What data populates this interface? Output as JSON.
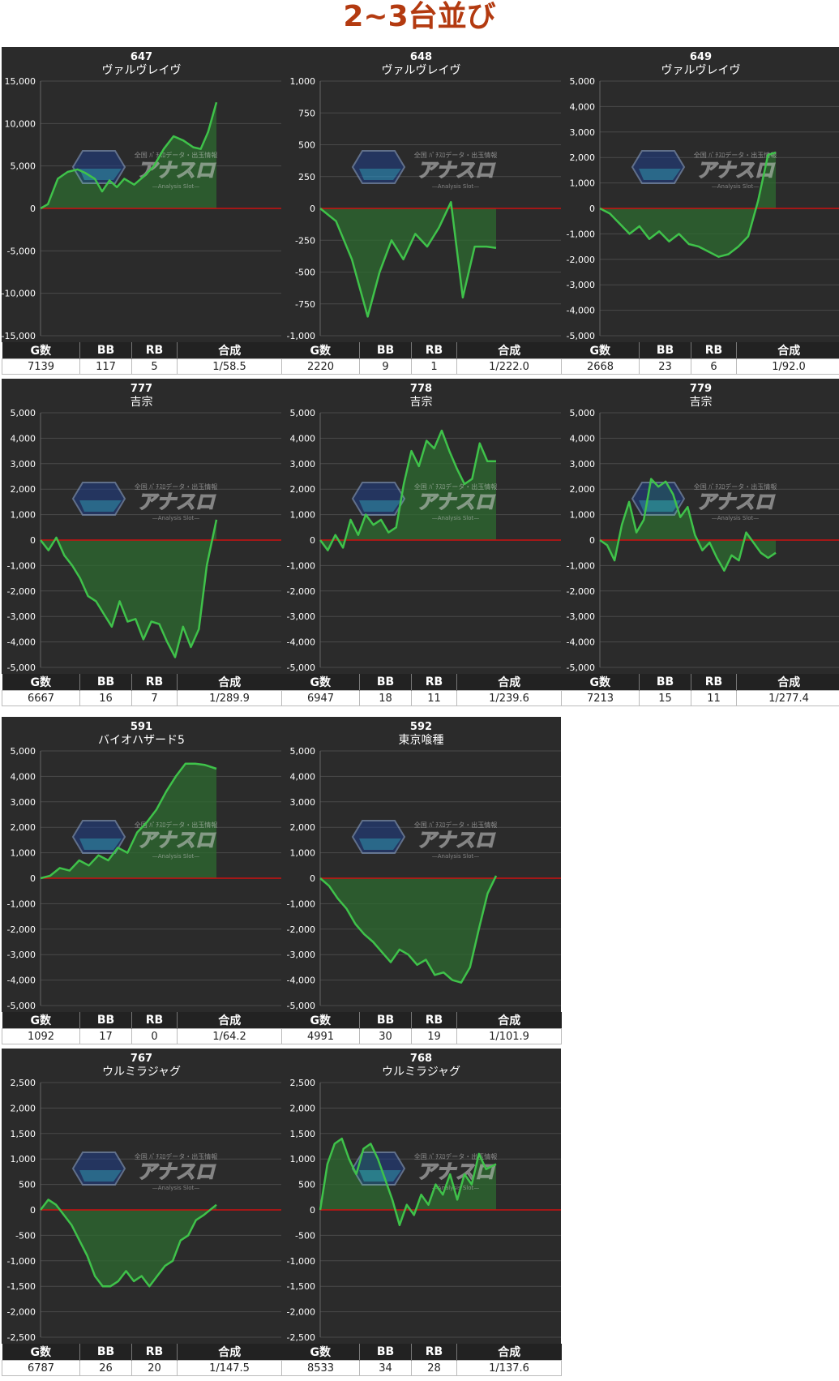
{
  "page": {
    "title": "2~3台並び"
  },
  "watermark": {
    "text": "アナスロ",
    "sub": "—Analysis Slot—",
    "top": "全国 ﾊﾟﾁｽﾛデータ・出玉情報"
  },
  "colors": {
    "line": "#3fc24a",
    "fill": "#2e6b30",
    "zero": "#cc1111",
    "plot_bg": "#2b2b2b",
    "title": "#b33a10"
  },
  "table_headers": [
    "G数",
    "BB",
    "RB",
    "合成"
  ],
  "machines": [
    {
      "number": "647",
      "name": "ヴァルヴレイヴ",
      "stats": {
        "games": "7139",
        "bb": "117",
        "rb": "5",
        "combined": "1/58.5"
      },
      "chart_data": {
        "type": "line",
        "ylim": [
          -15000,
          15000
        ],
        "yticks": [
          15000,
          10000,
          5000,
          0,
          -5000,
          -10000,
          -15000
        ],
        "tick_labels": [
          "15,000",
          "10,000",
          "5,000",
          "0",
          "-5,000",
          "-10,000",
          "-15,000"
        ],
        "xmax": 7139,
        "x": [
          0,
          300,
          700,
          1100,
          1500,
          1800,
          2200,
          2500,
          2800,
          3100,
          3400,
          3800,
          4200,
          4600,
          5000,
          5400,
          5800,
          6200,
          6500,
          6800,
          7139
        ],
        "y": [
          0,
          500,
          3500,
          4300,
          4600,
          4200,
          3500,
          2000,
          3300,
          2500,
          3500,
          2800,
          3800,
          5000,
          7000,
          8500,
          8000,
          7200,
          7000,
          9000,
          12500
        ]
      }
    },
    {
      "number": "648",
      "name": "ヴァルヴレイヴ",
      "stats": {
        "games": "2220",
        "bb": "9",
        "rb": "1",
        "combined": "1/222.0"
      },
      "chart_data": {
        "type": "line",
        "ylim": [
          -1000,
          1000
        ],
        "yticks": [
          1000,
          750,
          500,
          250,
          0,
          -250,
          -500,
          -750,
          -1000
        ],
        "tick_labels": [
          "1,000",
          "750",
          "500",
          "250",
          "0",
          "-250",
          "-500",
          "-750",
          "-1,000"
        ],
        "xmax": 2220,
        "x": [
          0,
          200,
          400,
          600,
          750,
          900,
          1050,
          1200,
          1350,
          1500,
          1650,
          1800,
          1950,
          2100,
          2220
        ],
        "y": [
          0,
          -100,
          -400,
          -850,
          -500,
          -250,
          -400,
          -200,
          -300,
          -150,
          50,
          -700,
          -300,
          -300,
          -310
        ]
      }
    },
    {
      "number": "649",
      "name": "ヴァルヴレイヴ",
      "stats": {
        "games": "2668",
        "bb": "23",
        "rb": "6",
        "combined": "1/92.0"
      },
      "chart_data": {
        "type": "line",
        "ylim": [
          -5000,
          5000
        ],
        "yticks": [
          5000,
          4000,
          3000,
          2000,
          1000,
          0,
          -1000,
          -2000,
          -3000,
          -4000,
          -5000
        ],
        "tick_labels": [
          "5,000",
          "4,000",
          "3,000",
          "2,000",
          "1,000",
          "0",
          "-1,000",
          "-2,000",
          "-3,000",
          "-4,000",
          "-5,000"
        ],
        "xmax": 2668,
        "x": [
          0,
          150,
          300,
          450,
          600,
          750,
          900,
          1050,
          1200,
          1350,
          1500,
          1650,
          1800,
          1950,
          2100,
          2250,
          2400,
          2550,
          2668
        ],
        "y": [
          0,
          -200,
          -600,
          -1000,
          -700,
          -1200,
          -900,
          -1300,
          -1000,
          -1400,
          -1500,
          -1700,
          -1900,
          -1800,
          -1500,
          -1100,
          300,
          2100,
          2200
        ]
      }
    },
    {
      "number": "777",
      "name": "吉宗",
      "stats": {
        "games": "6667",
        "bb": "16",
        "rb": "7",
        "combined": "1/289.9"
      },
      "chart_data": {
        "type": "line",
        "ylim": [
          -5000,
          5000
        ],
        "yticks": [
          5000,
          4000,
          3000,
          2000,
          1000,
          0,
          -1000,
          -2000,
          -3000,
          -4000,
          -5000
        ],
        "tick_labels": [
          "5,000",
          "4,000",
          "3,000",
          "2,000",
          "1,000",
          "0",
          "-1,000",
          "-2,000",
          "-3,000",
          "-4,000",
          "-5,000"
        ],
        "xmax": 6667,
        "x": [
          0,
          300,
          600,
          900,
          1200,
          1500,
          1800,
          2100,
          2400,
          2700,
          3000,
          3300,
          3600,
          3900,
          4200,
          4500,
          4800,
          5100,
          5400,
          5700,
          6000,
          6300,
          6667
        ],
        "y": [
          0,
          -400,
          100,
          -600,
          -1000,
          -1500,
          -2200,
          -2400,
          -2900,
          -3400,
          -2400,
          -3200,
          -3100,
          -3900,
          -3200,
          -3300,
          -4000,
          -4600,
          -3400,
          -4200,
          -3500,
          -1000,
          800
        ]
      }
    },
    {
      "number": "778",
      "name": "吉宗",
      "stats": {
        "games": "6947",
        "bb": "18",
        "rb": "11",
        "combined": "1/239.6"
      },
      "chart_data": {
        "type": "line",
        "ylim": [
          -5000,
          5000
        ],
        "yticks": [
          5000,
          4000,
          3000,
          2000,
          1000,
          0,
          -1000,
          -2000,
          -3000,
          -4000,
          -5000
        ],
        "tick_labels": [
          "5,000",
          "4,000",
          "3,000",
          "2,000",
          "1,000",
          "0",
          "-1,000",
          "-2,000",
          "-3,000",
          "-4,000",
          "-5,000"
        ],
        "xmax": 6947,
        "x": [
          0,
          300,
          600,
          900,
          1200,
          1500,
          1800,
          2100,
          2400,
          2700,
          3000,
          3300,
          3600,
          3900,
          4200,
          4500,
          4800,
          5100,
          5400,
          5700,
          6000,
          6300,
          6600,
          6947
        ],
        "y": [
          0,
          -400,
          200,
          -300,
          800,
          200,
          1000,
          600,
          800,
          300,
          500,
          2200,
          3500,
          2900,
          3900,
          3600,
          4300,
          3500,
          2800,
          2200,
          2400,
          3800,
          3100,
          3100
        ]
      }
    },
    {
      "number": "779",
      "name": "吉宗",
      "stats": {
        "games": "7213",
        "bb": "15",
        "rb": "11",
        "combined": "1/277.4"
      },
      "chart_data": {
        "type": "line",
        "ylim": [
          -5000,
          5000
        ],
        "yticks": [
          5000,
          4000,
          3000,
          2000,
          1000,
          0,
          -1000,
          -2000,
          -3000,
          -4000,
          -5000
        ],
        "tick_labels": [
          "5,000",
          "4,000",
          "3,000",
          "2,000",
          "1,000",
          "0",
          "-1,000",
          "-2,000",
          "-3,000",
          "-4,000",
          "-5,000"
        ],
        "xmax": 7213,
        "x": [
          0,
          300,
          600,
          900,
          1200,
          1500,
          1800,
          2100,
          2400,
          2700,
          3000,
          3300,
          3600,
          3900,
          4200,
          4500,
          4800,
          5100,
          5400,
          5700,
          6000,
          6300,
          6600,
          6900,
          7213
        ],
        "y": [
          0,
          -200,
          -800,
          600,
          1500,
          300,
          800,
          2400,
          2100,
          2300,
          1800,
          900,
          1300,
          200,
          -400,
          -100,
          -700,
          -1200,
          -600,
          -800,
          300,
          -100,
          -500,
          -700,
          -500
        ]
      }
    },
    {
      "number": "591",
      "name": "バイオハザード5",
      "stats": {
        "games": "1092",
        "bb": "17",
        "rb": "0",
        "combined": "1/64.2"
      },
      "chart_data": {
        "type": "line",
        "ylim": [
          -5000,
          5000
        ],
        "yticks": [
          5000,
          4000,
          3000,
          2000,
          1000,
          0,
          -1000,
          -2000,
          -3000,
          -4000,
          -5000
        ],
        "tick_labels": [
          "5,000",
          "4,000",
          "3,000",
          "2,000",
          "1,000",
          "0",
          "-1,000",
          "-2,000",
          "-3,000",
          "-4,000",
          "-5,000"
        ],
        "xmax": 1092,
        "x": [
          0,
          60,
          120,
          180,
          240,
          300,
          360,
          420,
          480,
          540,
          600,
          660,
          720,
          780,
          840,
          900,
          960,
          1020,
          1092
        ],
        "y": [
          0,
          100,
          400,
          300,
          700,
          500,
          900,
          700,
          1200,
          1000,
          1800,
          2200,
          2700,
          3400,
          4000,
          4500,
          4500,
          4450,
          4300
        ]
      }
    },
    {
      "number": "592",
      "name": "東京喰種",
      "stats": {
        "games": "4991",
        "bb": "30",
        "rb": "19",
        "combined": "1/101.9"
      },
      "chart_data": {
        "type": "line",
        "ylim": [
          -5000,
          5000
        ],
        "yticks": [
          5000,
          4000,
          3000,
          2000,
          1000,
          0,
          -1000,
          -2000,
          -3000,
          -4000,
          -5000
        ],
        "tick_labels": [
          "5,000",
          "4,000",
          "3,000",
          "2,000",
          "1,000",
          "0",
          "-1,000",
          "-2,000",
          "-3,000",
          "-4,000",
          "-5,000"
        ],
        "xmax": 4991,
        "x": [
          0,
          250,
          500,
          750,
          1000,
          1250,
          1500,
          1750,
          2000,
          2250,
          2500,
          2750,
          3000,
          3250,
          3500,
          3750,
          4000,
          4250,
          4500,
          4750,
          4991
        ],
        "y": [
          0,
          -300,
          -800,
          -1200,
          -1800,
          -2200,
          -2500,
          -2900,
          -3300,
          -2800,
          -3000,
          -3400,
          -3200,
          -3800,
          -3700,
          -4000,
          -4100,
          -3500,
          -2000,
          -600,
          100
        ]
      }
    },
    {
      "number": "767",
      "name": "ウルミラジャグ",
      "stats": {
        "games": "6787",
        "bb": "26",
        "rb": "20",
        "combined": "1/147.5"
      },
      "chart_data": {
        "type": "line",
        "ylim": [
          -2500,
          2500
        ],
        "yticks": [
          2500,
          2000,
          1500,
          1000,
          500,
          0,
          -500,
          -1000,
          -1500,
          -2000,
          -2500
        ],
        "tick_labels": [
          "2,500",
          "2,000",
          "1,500",
          "1,000",
          "500",
          "0",
          "-500",
          "-1,000",
          "-1,500",
          "-2,000",
          "-2,500"
        ],
        "xmax": 6787,
        "x": [
          0,
          300,
          600,
          900,
          1200,
          1500,
          1800,
          2100,
          2400,
          2700,
          3000,
          3300,
          3600,
          3900,
          4200,
          4500,
          4800,
          5100,
          5400,
          5700,
          6000,
          6300,
          6787
        ],
        "y": [
          0,
          200,
          100,
          -100,
          -300,
          -600,
          -900,
          -1300,
          -1500,
          -1500,
          -1400,
          -1200,
          -1400,
          -1300,
          -1500,
          -1300,
          -1100,
          -1000,
          -600,
          -500,
          -200,
          -100,
          100
        ]
      }
    },
    {
      "number": "768",
      "name": "ウルミラジャグ",
      "stats": {
        "games": "8533",
        "bb": "34",
        "rb": "28",
        "combined": "1/137.6"
      },
      "chart_data": {
        "type": "line",
        "ylim": [
          -2500,
          2500
        ],
        "yticks": [
          2500,
          2000,
          1500,
          1000,
          500,
          0,
          -500,
          -1000,
          -1500,
          -2000,
          -2500
        ],
        "tick_labels": [
          "2,500",
          "2,000",
          "1,500",
          "1,000",
          "500",
          "0",
          "-500",
          "-1,000",
          "-1,500",
          "-2,000",
          "-2,500"
        ],
        "xmax": 8533,
        "x": [
          0,
          350,
          700,
          1050,
          1400,
          1750,
          2100,
          2450,
          2800,
          3150,
          3500,
          3850,
          4200,
          4550,
          4900,
          5250,
          5600,
          5950,
          6300,
          6650,
          7000,
          7350,
          7700,
          8050,
          8533
        ],
        "y": [
          0,
          900,
          1300,
          1400,
          1000,
          700,
          1200,
          1300,
          1000,
          600,
          200,
          -300,
          100,
          -100,
          300,
          100,
          500,
          300,
          700,
          200,
          700,
          500,
          1100,
          800,
          900
        ]
      }
    }
  ]
}
